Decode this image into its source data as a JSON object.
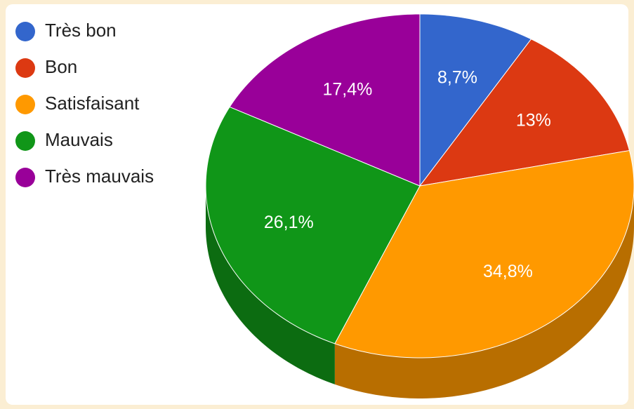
{
  "chart_data": {
    "type": "pie3d",
    "categories": [
      "Très bon",
      "Bon",
      "Satisfaisant",
      "Mauvais",
      "Très mauvais"
    ],
    "values": [
      8.7,
      13,
      34.8,
      26.1,
      17.4
    ],
    "value_labels": [
      "8,7%",
      "13%",
      "34,8%",
      "26,1%",
      "17,4%"
    ],
    "colors": [
      "#3366cc",
      "#dc3912",
      "#ff9900",
      "#109618",
      "#990099"
    ],
    "legend": "left"
  }
}
